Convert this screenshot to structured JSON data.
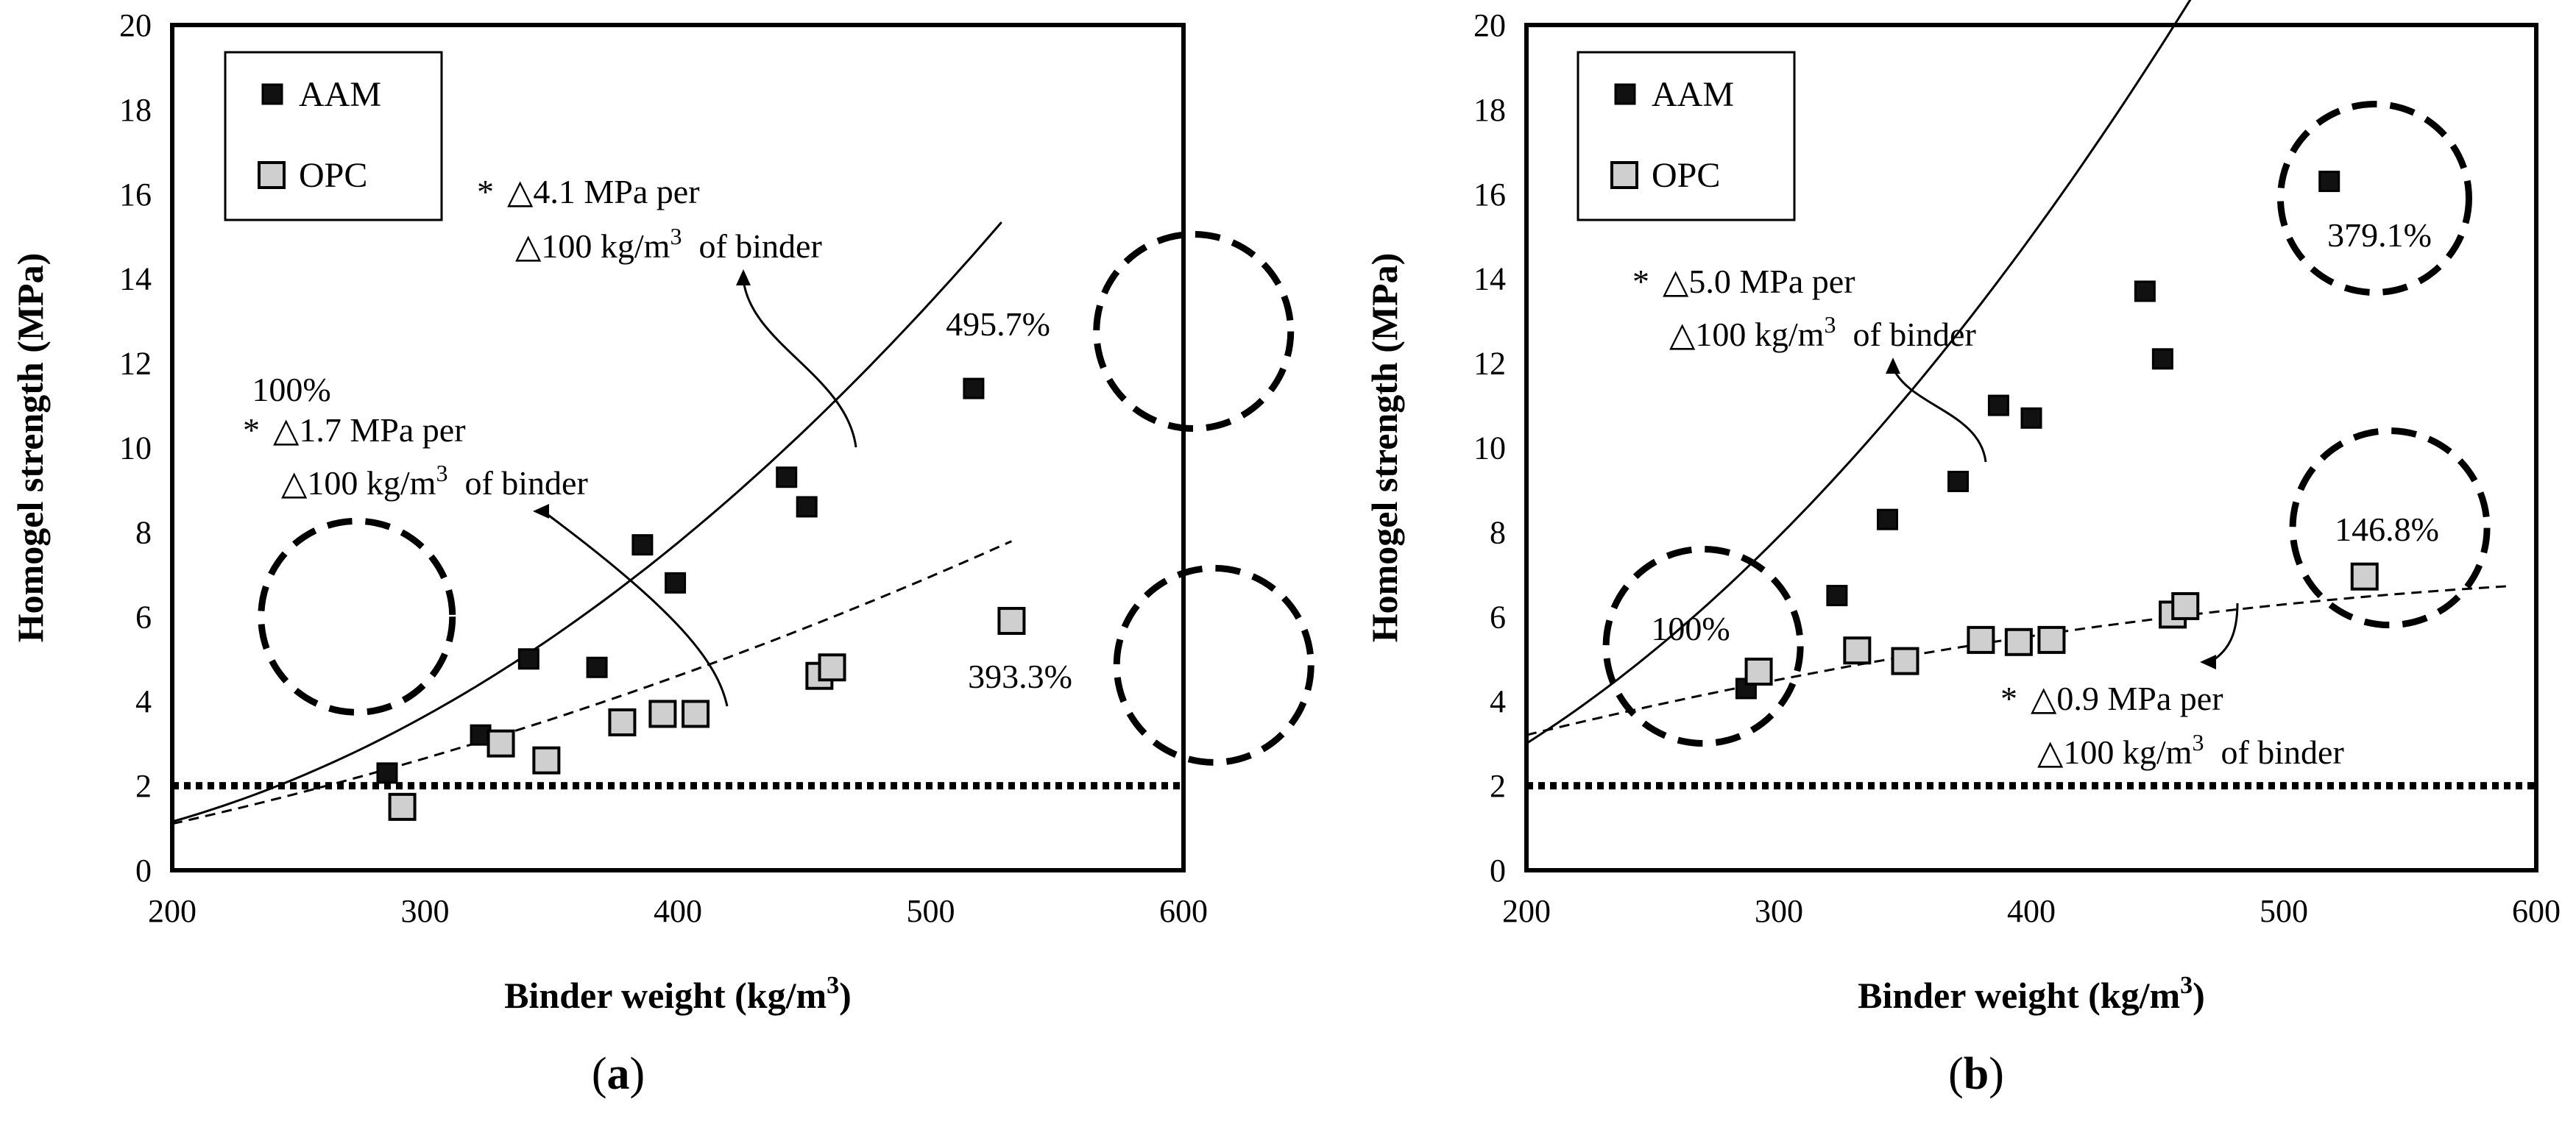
{
  "figure": {
    "panels": [
      "(a)",
      "(b)"
    ]
  },
  "chart_data": [
    {
      "type": "scatter",
      "panel_label": "(a)",
      "panel_prefix": "(",
      "panel_letter": "a",
      "panel_suffix": ")",
      "title": "",
      "xlabel": "Binder weight (kg/m3)",
      "xlabel_main": "Binder weight (kg/m",
      "xlabel_sup": "3",
      "xlabel_end": ")",
      "ylabel": "Homogel strength (MPa)",
      "xlim": [
        200,
        600
      ],
      "ylim": [
        0,
        20
      ],
      "xticks": [
        200,
        300,
        400,
        500,
        600
      ],
      "yticks": [
        0,
        2,
        4,
        6,
        8,
        10,
        12,
        14,
        16,
        18,
        20
      ],
      "legend": [
        "AAM",
        "OPC"
      ],
      "legend_position": "top-left",
      "reference_line": {
        "y": 2,
        "style": "dotted"
      },
      "series": [
        {
          "name": "AAM",
          "marker": "filled-black-square",
          "x": [
            285,
            322,
            341,
            368,
            386,
            399,
            443,
            451,
            517
          ],
          "y": [
            2.3,
            3.2,
            5.0,
            4.8,
            7.7,
            6.8,
            9.3,
            8.6,
            11.4
          ],
          "trend": {
            "style": "solid",
            "x_range": [
              200,
              528
            ],
            "coef": [
              1.15,
              1.7,
              0.8
            ]
          }
        },
        {
          "name": "OPC",
          "marker": "grey-square",
          "x": [
            291,
            330,
            348,
            378,
            394,
            407,
            456,
            461,
            532
          ],
          "y": [
            1.5,
            3.0,
            2.6,
            3.5,
            3.7,
            3.7,
            4.6,
            4.8,
            5.9
          ],
          "trend": {
            "style": "dashed",
            "x_range": [
              200,
              532
            ],
            "coef": [
              1.1,
              1.35,
              0.2
            ]
          }
        }
      ],
      "annotations": [
        {
          "star": "*",
          "line1": "△4.1 MPa per",
          "line2_pre": "△100 kg/m",
          "line2_sup": "3",
          "line2_post": "  of binder"
        },
        {
          "star": "*",
          "line1": "△1.7 MPa per",
          "line2_pre": "△100 kg/m",
          "line2_sup": "3",
          "line2_post": "  of binder"
        }
      ],
      "percent_labels": [
        "100%",
        "495.7%",
        "393.3%"
      ]
    },
    {
      "type": "scatter",
      "panel_label": "(b)",
      "panel_prefix": "(",
      "panel_letter": "b",
      "panel_suffix": ")",
      "title": "",
      "xlabel": "Binder weight (kg/m3)",
      "xlabel_main": "Binder weight (kg/m",
      "xlabel_sup": "3",
      "xlabel_end": ")",
      "ylabel": "Homogel strength (MPa)",
      "xlim": [
        200,
        600
      ],
      "ylim": [
        0,
        20
      ],
      "xticks": [
        200,
        300,
        400,
        500,
        600
      ],
      "yticks": [
        0,
        2,
        4,
        6,
        8,
        10,
        12,
        14,
        16,
        18,
        20
      ],
      "legend": [
        "AAM",
        "OPC"
      ],
      "legend_position": "top-left",
      "reference_line": {
        "y": 2,
        "style": "dotted"
      },
      "series": [
        {
          "name": "AAM",
          "marker": "filled-black-square",
          "x": [
            287,
            323,
            343,
            371,
            387,
            400,
            445,
            452,
            518
          ],
          "y": [
            4.3,
            6.5,
            8.3,
            9.2,
            11.0,
            10.7,
            13.7,
            12.1,
            16.3
          ],
          "trend": {
            "style": "solid",
            "x_range": [
              200,
              528
            ],
            "coef": [
              3.0,
              3.8,
              1.1
            ]
          }
        },
        {
          "name": "OPC",
          "marker": "grey-square",
          "x": [
            292,
            331,
            350,
            380,
            395,
            408,
            456,
            461,
            532
          ],
          "y": [
            4.7,
            5.2,
            4.95,
            5.45,
            5.4,
            5.45,
            6.05,
            6.25,
            6.95
          ],
          "trend": {
            "style": "dashed",
            "x_range": [
              200,
              590
            ],
            "coef": [
              3.2,
              1.45,
              -0.14
            ]
          }
        }
      ],
      "annotations": [
        {
          "star": "*",
          "line1": "△5.0 MPa per",
          "line2_pre": "△100 kg/m",
          "line2_sup": "3",
          "line2_post": "  of binder"
        },
        {
          "star": "*",
          "line1": "△0.9 MPa per",
          "line2_pre": "△100 kg/m",
          "line2_sup": "3",
          "line2_post": "  of binder"
        }
      ],
      "percent_labels": [
        "100%",
        "379.1%",
        "146.8%"
      ]
    }
  ]
}
